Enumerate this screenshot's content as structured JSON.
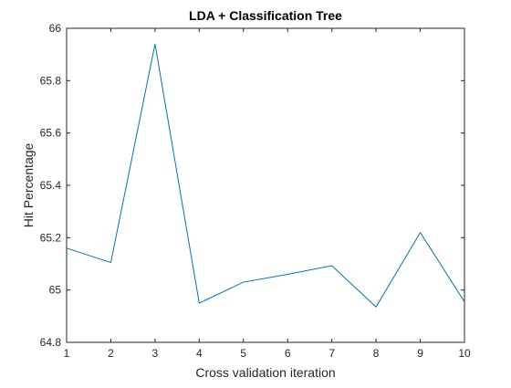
{
  "chart_data": {
    "type": "line",
    "title": "LDA + Classification Tree",
    "xlabel": "Cross validation iteration",
    "ylabel": "Hit Percentage",
    "xlim": [
      1,
      10
    ],
    "ylim": [
      64.8,
      66
    ],
    "xticks": [
      "1",
      "2",
      "3",
      "4",
      "5",
      "6",
      "7",
      "8",
      "9",
      "10"
    ],
    "yticks": [
      "64.8",
      "65",
      "65.2",
      "65.4",
      "65.6",
      "65.8",
      "66"
    ],
    "grid": false,
    "legend": "none",
    "series": [
      {
        "color": "#0072BD",
        "x": [
          1,
          2,
          3,
          4,
          5,
          6,
          7,
          8,
          9,
          10
        ],
        "y": [
          65.16,
          65.105,
          65.94,
          64.95,
          65.03,
          65.06,
          65.093,
          64.935,
          65.22,
          64.955
        ]
      }
    ]
  }
}
